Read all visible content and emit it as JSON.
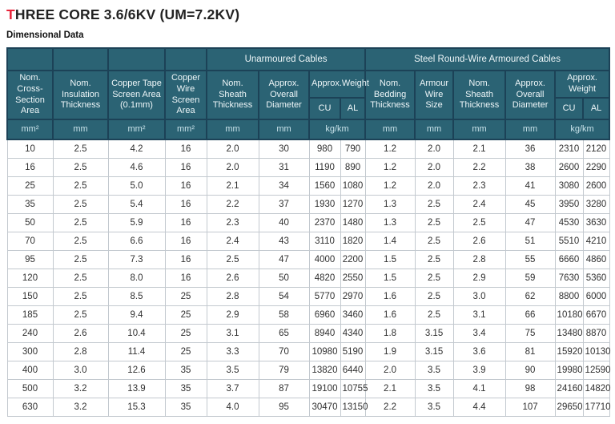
{
  "page": {
    "title_accent": "T",
    "title_rest": "HREE CORE 3.6/6KV (UM=7.2KV)",
    "subtitle": "Dimensional Data"
  },
  "colors": {
    "header_bg": "#2b6374",
    "header_border": "#1c4257",
    "header_text": "#eef6f8",
    "units_text": "#c9e3ea",
    "title_accent": "#e82339",
    "body_text": "#303030",
    "body_border": "#c3c9cf"
  },
  "table": {
    "groups": {
      "unarmoured": "Unarmoured Cables",
      "armoured": "Steel Round-Wire Armoured Cables"
    },
    "headers": {
      "cross_section": "Nom. Cross-Section Area",
      "insulation": "Nom. Insulation Thickness",
      "tape_screen": "Copper Tape Screen Area (0.1mm)",
      "wire_screen": "Copper Wire Screen Area",
      "sheath_unarmoured": "Nom. Sheath Thickness",
      "diameter_unarmoured": "Approx. Overall Diameter",
      "weight_unarmoured": "Approx.Weight",
      "bedding": "Nom. Bedding Thickness",
      "armour_wire": "Armour Wire Size",
      "sheath_armoured": "Nom. Sheath Thickness",
      "diameter_armoured": "Approx. Overall Diameter",
      "weight_armoured": "Approx. Weight",
      "cu": "CU",
      "al": "AL"
    },
    "units": [
      "mm²",
      "mm",
      "mm²",
      "mm²",
      "mm",
      "mm",
      "kg/km",
      "mm",
      "mm",
      "mm",
      "mm",
      "kg/km"
    ],
    "rows": [
      [
        "10",
        "2.5",
        "4.2",
        "16",
        "2.0",
        "30",
        "980",
        "790",
        "1.2",
        "2.0",
        "2.1",
        "36",
        "2310",
        "2120"
      ],
      [
        "16",
        "2.5",
        "4.6",
        "16",
        "2.0",
        "31",
        "1190",
        "890",
        "1.2",
        "2.0",
        "2.2",
        "38",
        "2600",
        "2290"
      ],
      [
        "25",
        "2.5",
        "5.0",
        "16",
        "2.1",
        "34",
        "1560",
        "1080",
        "1.2",
        "2.0",
        "2.3",
        "41",
        "3080",
        "2600"
      ],
      [
        "35",
        "2.5",
        "5.4",
        "16",
        "2.2",
        "37",
        "1930",
        "1270",
        "1.3",
        "2.5",
        "2.4",
        "45",
        "3950",
        "3280"
      ],
      [
        "50",
        "2.5",
        "5.9",
        "16",
        "2.3",
        "40",
        "2370",
        "1480",
        "1.3",
        "2.5",
        "2.5",
        "47",
        "4530",
        "3630"
      ],
      [
        "70",
        "2.5",
        "6.6",
        "16",
        "2.4",
        "43",
        "3110",
        "1820",
        "1.4",
        "2.5",
        "2.6",
        "51",
        "5510",
        "4210"
      ],
      [
        "95",
        "2.5",
        "7.3",
        "16",
        "2.5",
        "47",
        "4000",
        "2200",
        "1.5",
        "2.5",
        "2.8",
        "55",
        "6660",
        "4860"
      ],
      [
        "120",
        "2.5",
        "8.0",
        "16",
        "2.6",
        "50",
        "4820",
        "2550",
        "1.5",
        "2.5",
        "2.9",
        "59",
        "7630",
        "5360"
      ],
      [
        "150",
        "2.5",
        "8.5",
        "25",
        "2.8",
        "54",
        "5770",
        "2970",
        "1.6",
        "2.5",
        "3.0",
        "62",
        "8800",
        "6000"
      ],
      [
        "185",
        "2.5",
        "9.4",
        "25",
        "2.9",
        "58",
        "6960",
        "3460",
        "1.6",
        "2.5",
        "3.1",
        "66",
        "10180",
        "6670"
      ],
      [
        "240",
        "2.6",
        "10.4",
        "25",
        "3.1",
        "65",
        "8940",
        "4340",
        "1.8",
        "3.15",
        "3.4",
        "75",
        "13480",
        "8870"
      ],
      [
        "300",
        "2.8",
        "11.4",
        "25",
        "3.3",
        "70",
        "10980",
        "5190",
        "1.9",
        "3.15",
        "3.6",
        "81",
        "15920",
        "10130"
      ],
      [
        "400",
        "3.0",
        "12.6",
        "35",
        "3.5",
        "79",
        "13820",
        "6440",
        "2.0",
        "3.5",
        "3.9",
        "90",
        "19980",
        "12590"
      ],
      [
        "500",
        "3.2",
        "13.9",
        "35",
        "3.7",
        "87",
        "19100",
        "10755",
        "2.1",
        "3.5",
        "4.1",
        "98",
        "24160",
        "14820"
      ],
      [
        "630",
        "3.2",
        "15.3",
        "35",
        "4.0",
        "95",
        "30470",
        "13150",
        "2.2",
        "3.5",
        "4.4",
        "107",
        "29650",
        "17710"
      ]
    ]
  }
}
